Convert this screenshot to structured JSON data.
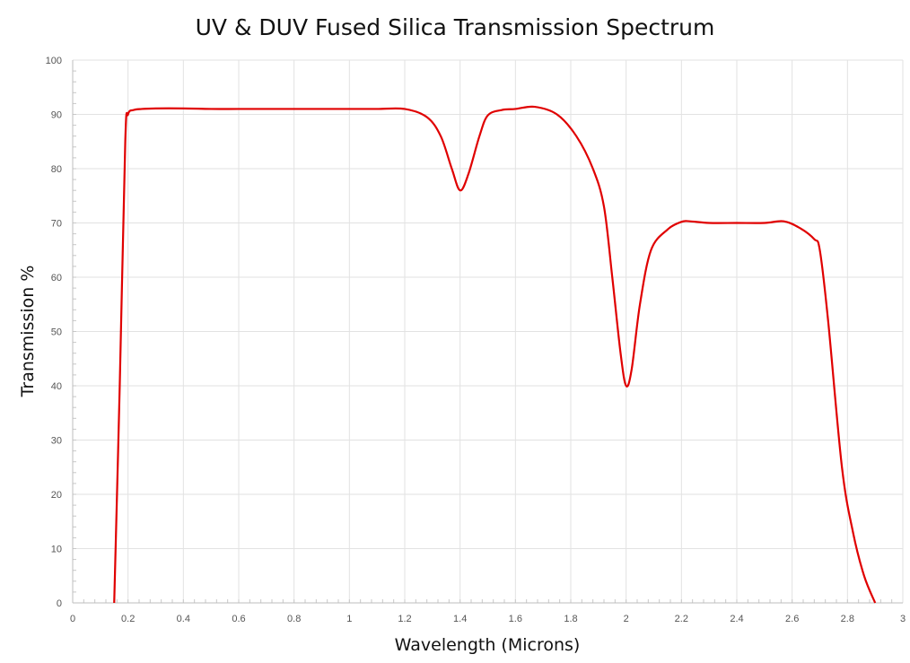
{
  "chart_data": {
    "type": "line",
    "title": "UV & DUV Fused Silica Transmission Spectrum",
    "xlabel": "Wavelength (Microns)",
    "ylabel": "Transmission %",
    "xlim": [
      0,
      3
    ],
    "ylim": [
      0,
      100
    ],
    "x_ticks": [
      "0",
      "0.2",
      "0.4",
      "0.6",
      "0.8",
      "1",
      "1.2",
      "1.4",
      "1.6",
      "1.8",
      "2",
      "2.2",
      "2.4",
      "2.6",
      "2.8",
      "3"
    ],
    "y_ticks": [
      "0",
      "10",
      "20",
      "30",
      "40",
      "50",
      "60",
      "70",
      "80",
      "90",
      "100"
    ],
    "grid": true,
    "line_color": "#e00000",
    "series": [
      {
        "x": [
          0.15,
          0.17,
          0.19,
          0.2,
          0.22,
          0.25,
          0.3,
          0.4,
          0.5,
          0.6,
          0.8,
          1.0,
          1.1,
          1.2,
          1.28,
          1.33,
          1.37,
          1.4,
          1.43,
          1.47,
          1.5,
          1.55,
          1.6,
          1.67,
          1.75,
          1.82,
          1.88,
          1.92,
          1.95,
          1.98,
          2.0,
          2.02,
          2.05,
          2.09,
          2.15,
          2.2,
          2.23,
          2.3,
          2.4,
          2.5,
          2.57,
          2.63,
          2.68,
          2.7,
          2.73,
          2.78,
          2.82,
          2.86,
          2.9
        ],
        "y": [
          0,
          40,
          85,
          90,
          90.8,
          91,
          91.1,
          91.1,
          91,
          91,
          91,
          91,
          91,
          91,
          89.5,
          86,
          80,
          76,
          79,
          86,
          89.8,
          90.8,
          91,
          91.4,
          90,
          86,
          80,
          73,
          60,
          46,
          40,
          43,
          55,
          65,
          68.8,
          70.2,
          70.3,
          70,
          70,
          70,
          70.3,
          69,
          67,
          65,
          52,
          25,
          13,
          5,
          0
        ]
      }
    ]
  }
}
